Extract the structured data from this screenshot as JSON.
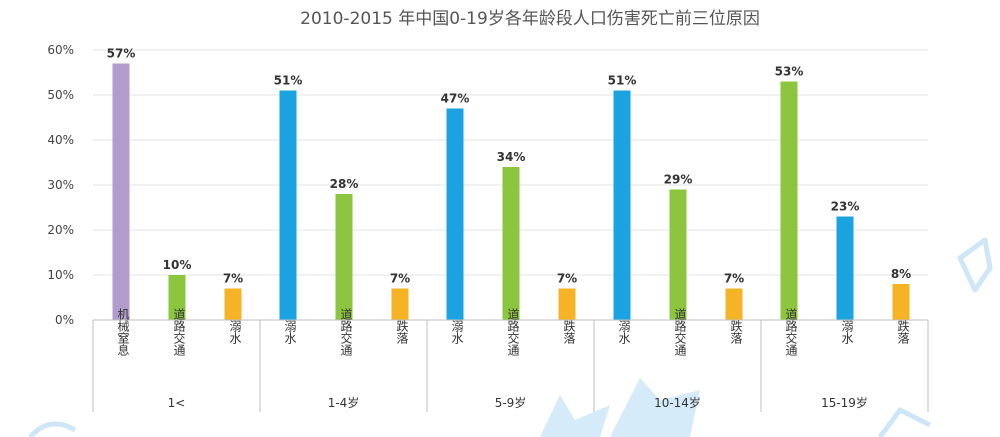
{
  "chart_data": {
    "type": "bar",
    "title": "2010-2015 年中国0-19岁各年龄段人口伤害死亡前三位原因",
    "ylim": [
      0,
      60
    ],
    "yticks": [
      0,
      10,
      20,
      30,
      40,
      50,
      60
    ],
    "ytick_labels": [
      "0%",
      "10%",
      "20%",
      "30%",
      "40%",
      "50%",
      "60%"
    ],
    "grid": true,
    "groups": [
      {
        "label": "1<",
        "bars": [
          {
            "category": "机械窒息",
            "value": 57,
            "label": "57%",
            "color": "#b19ccb"
          },
          {
            "category": "道路交通",
            "value": 10,
            "label": "10%",
            "color": "#8cc63f"
          },
          {
            "category": "溺水",
            "value": 7,
            "label": "7%",
            "color": "#f5b325"
          }
        ]
      },
      {
        "label": "1-4岁",
        "bars": [
          {
            "category": "溺水",
            "value": 51,
            "label": "51%",
            "color": "#1aa3e0"
          },
          {
            "category": "道路交通",
            "value": 28,
            "label": "28%",
            "color": "#8cc63f"
          },
          {
            "category": "跌落",
            "value": 7,
            "label": "7%",
            "color": "#f5b325"
          }
        ]
      },
      {
        "label": "5-9岁",
        "bars": [
          {
            "category": "溺水",
            "value": 47,
            "label": "47%",
            "color": "#1aa3e0"
          },
          {
            "category": "道路交通",
            "value": 34,
            "label": "34%",
            "color": "#8cc63f"
          },
          {
            "category": "跌落",
            "value": 7,
            "label": "7%",
            "color": "#f5b325"
          }
        ]
      },
      {
        "label": "10-14岁",
        "bars": [
          {
            "category": "溺水",
            "value": 51,
            "label": "51%",
            "color": "#1aa3e0"
          },
          {
            "category": "道路交通",
            "value": 29,
            "label": "29%",
            "color": "#8cc63f"
          },
          {
            "category": "跌落",
            "value": 7,
            "label": "7%",
            "color": "#f5b325"
          }
        ]
      },
      {
        "label": "15-19岁",
        "bars": [
          {
            "category": "道路交通",
            "value": 53,
            "label": "53%",
            "color": "#8cc63f"
          },
          {
            "category": "溺水",
            "value": 23,
            "label": "23%",
            "color": "#1aa3e0"
          },
          {
            "category": "跌落",
            "value": 8,
            "label": "8%",
            "color": "#f5b325"
          }
        ]
      }
    ]
  }
}
